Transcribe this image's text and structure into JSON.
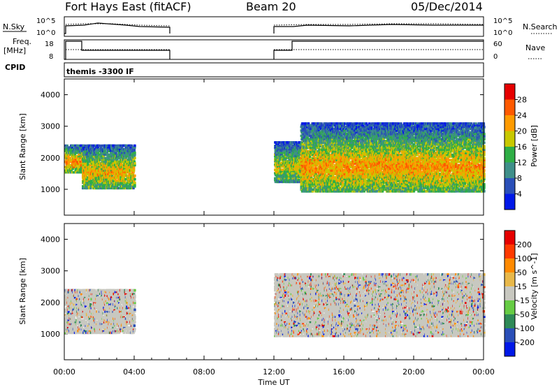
{
  "header": {
    "station": "Fort Hays East (fitACF)",
    "beam": "Beam 20",
    "date": "05/Dec/2014"
  },
  "strip": {
    "nsky_label": "N.Sky",
    "freq_label_1": "Freq.",
    "freq_label_2": "[MHz]",
    "cpid_label": "CPID",
    "nsearch_label": "N.Search",
    "nave_label": "Nave",
    "nsky_ticks": [
      "10^5",
      "10^0"
    ],
    "nsearch_ticks": [
      "10^5",
      "10^0"
    ],
    "freq_ticks": [
      "18",
      "8"
    ],
    "nave_ticks": [
      "60",
      "0"
    ],
    "cpid_text": "themis -3300 IF"
  },
  "chart_data": [
    {
      "type": "heatmap",
      "title": "",
      "xlabel": "",
      "ylabel": "Slant Range [km]",
      "yticks": [
        "1000",
        "2000",
        "3000",
        "4000"
      ],
      "ylim": [
        180,
        4500
      ],
      "xlim": [
        0,
        24
      ],
      "colorbar_label": "Power [dB]",
      "colorbar_ticks": [
        "4",
        "8",
        "12",
        "16",
        "20",
        "24",
        "28"
      ],
      "colors": [
        "#0018e8",
        "#2a4fb8",
        "#3f8f8a",
        "#2fae46",
        "#c8c800",
        "#ff9b00",
        "#ff5a00",
        "#e60000"
      ],
      "legend_position": "right",
      "regions": [
        {
          "t0": 0.0,
          "t1": 1.0,
          "r0": 1500,
          "r1": 2400,
          "level": 0.7
        },
        {
          "t0": 1.0,
          "t1": 4.0,
          "r0": 1000,
          "r1": 2400,
          "level": 0.6
        },
        {
          "t0": 12.0,
          "t1": 13.5,
          "r0": 1200,
          "r1": 2500,
          "level": 0.5
        },
        {
          "t0": 13.5,
          "t1": 24.0,
          "r0": 900,
          "r1": 3100,
          "level": 0.65
        }
      ]
    },
    {
      "type": "heatmap",
      "title": "",
      "xlabel": "Time UT",
      "ylabel": "Slant Range [km]",
      "yticks": [
        "1000",
        "2000",
        "3000",
        "4000"
      ],
      "xticks": [
        "00:00",
        "04:00",
        "08:00",
        "12:00",
        "16:00",
        "20:00",
        "00:00"
      ],
      "ylim": [
        180,
        4500
      ],
      "xlim": [
        0,
        24
      ],
      "colorbar_label": "Velocity [m s^-1]",
      "colorbar_ticks": [
        "200",
        "100",
        "50",
        "15",
        "-15",
        "-50",
        "-100",
        "-200"
      ],
      "colors": [
        "#0018e8",
        "#2a4fb8",
        "#2e8a57",
        "#66cc44",
        "#c8c8c0",
        "#e8b84a",
        "#ff8a00",
        "#ff3a00",
        "#e60000"
      ],
      "legend_position": "right",
      "regions": [
        {
          "t0": 0.0,
          "t1": 4.0,
          "r0": 1000,
          "r1": 2400,
          "level": 0.0
        },
        {
          "t0": 12.0,
          "t1": 24.0,
          "r0": 900,
          "r1": 2900,
          "level": 0.0
        }
      ]
    }
  ]
}
